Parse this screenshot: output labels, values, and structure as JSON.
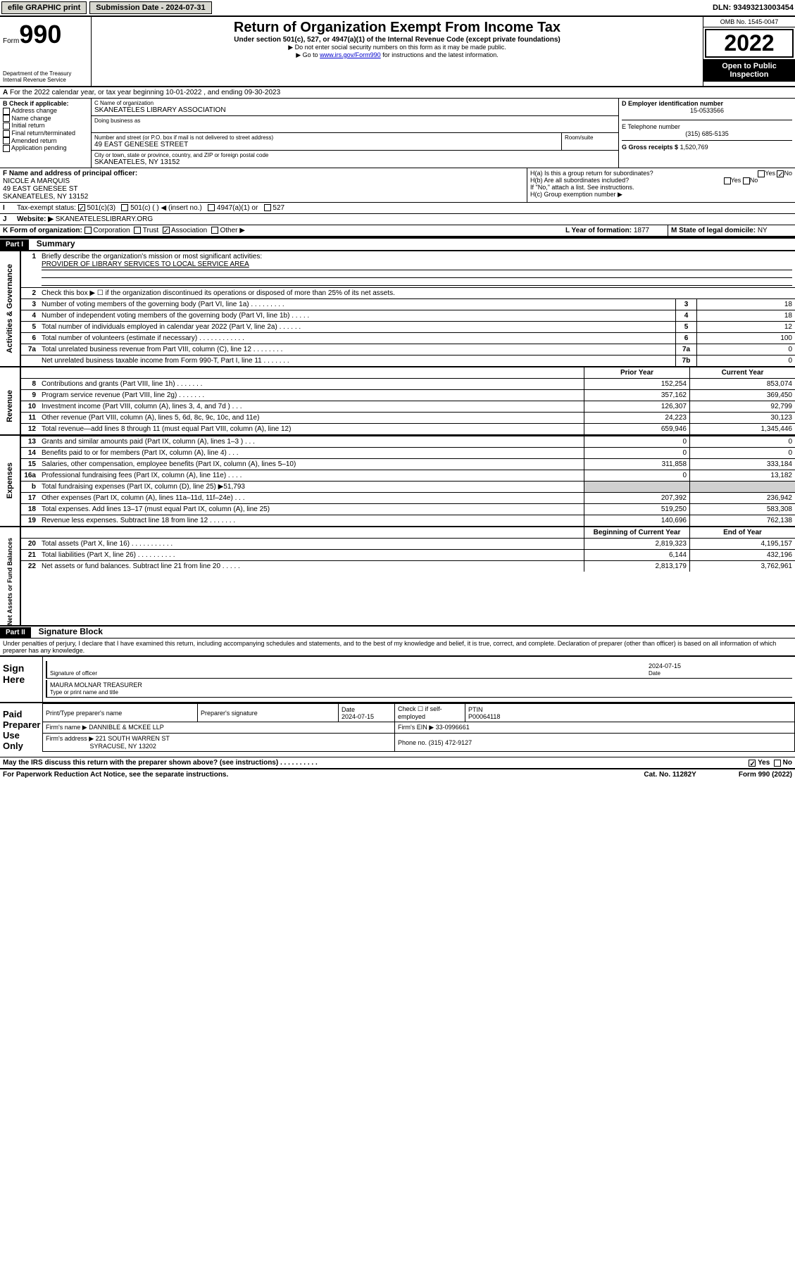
{
  "topbar": {
    "efile": "efile GRAPHIC print",
    "submission_label": "Submission Date - 2024-07-31",
    "dln": "DLN: 93493213003454"
  },
  "header": {
    "form_word": "Form",
    "form_number": "990",
    "title": "Return of Organization Exempt From Income Tax",
    "subtitle": "Under section 501(c), 527, or 4947(a)(1) of the Internal Revenue Code (except private foundations)",
    "note1": "▶ Do not enter social security numbers on this form as it may be made public.",
    "note2_pre": "▶ Go to ",
    "note2_link": "www.irs.gov/Form990",
    "note2_post": " for instructions and the latest information.",
    "dept": "Department of the Treasury\nInternal Revenue Service",
    "omb": "OMB No. 1545-0047",
    "tax_year": "2022",
    "open_public": "Open to Public Inspection"
  },
  "section_a": {
    "text": "For the 2022 calendar year, or tax year beginning 10-01-2022    , and ending 09-30-2023"
  },
  "section_b": {
    "label": "B Check if applicable:",
    "items": [
      "Address change",
      "Name change",
      "Initial return",
      "Final return/terminated",
      "Amended return",
      "Application pending"
    ]
  },
  "section_c": {
    "name_label": "C Name of organization",
    "name": "SKANEATELES LIBRARY ASSOCIATION",
    "dba_label": "Doing business as",
    "street_label": "Number and street (or P.O. box if mail is not delivered to street address)",
    "room_label": "Room/suite",
    "street": "49 EAST GENESEE STREET",
    "city_label": "City or town, state or province, country, and ZIP or foreign postal code",
    "city": "SKANEATELES, NY  13152"
  },
  "section_d": {
    "label": "D Employer identification number",
    "value": "15-0533566"
  },
  "section_e": {
    "label": "E Telephone number",
    "value": "(315) 685-5135"
  },
  "section_g": {
    "label": "G Gross receipts $",
    "value": "1,520,769"
  },
  "section_f": {
    "label": "F  Name and address of principal officer:",
    "name": "NICOLE A MARQUIS",
    "street": "49 EAST GENESEE ST",
    "city": "SKANEATELES, NY  13152"
  },
  "section_h": {
    "h_a": "H(a)  Is this a group return for subordinates?",
    "h_b": "H(b)  Are all subordinates included?",
    "h_b_note": "If \"No,\" attach a list. See instructions.",
    "h_c": "H(c)  Group exemption number ▶",
    "yes": "Yes",
    "no": "No"
  },
  "section_i": {
    "label": "Tax-exempt status:",
    "opts": [
      "501(c)(3)",
      "501(c) (  ) ◀ (insert no.)",
      "4947(a)(1) or",
      "527"
    ]
  },
  "section_j": {
    "label": "Website: ▶",
    "value": "SKANEATELESLIBRARY.ORG"
  },
  "section_k": {
    "label": "K Form of organization:",
    "opts": [
      "Corporation",
      "Trust",
      "Association",
      "Other ▶"
    ]
  },
  "section_l": {
    "label": "L Year of formation:",
    "value": "1877"
  },
  "section_m": {
    "label": "M State of legal domicile:",
    "value": "NY"
  },
  "part1": {
    "header": "Part I",
    "title": "Summary",
    "line1_label": "Briefly describe the organization's mission or most significant activities:",
    "line1_value": "PROVIDER OF LIBRARY SERVICES TO LOCAL SERVICE AREA",
    "line2": "Check this box ▶ ☐  if the organization discontinued its operations or disposed of more than 25% of its net assets.",
    "governance_rows": [
      {
        "n": "3",
        "desc": "Number of voting members of the governing body (Part VI, line 1a)  .    .    .    .    .    .    .    .    .",
        "box": "3",
        "val": "18"
      },
      {
        "n": "4",
        "desc": "Number of independent voting members of the governing body (Part VI, line 1b)  .    .    .    .    .",
        "box": "4",
        "val": "18"
      },
      {
        "n": "5",
        "desc": "Total number of individuals employed in calendar year 2022 (Part V, line 2a)  .    .    .    .    .    .",
        "box": "5",
        "val": "12"
      },
      {
        "n": "6",
        "desc": "Total number of volunteers (estimate if necessary)  .    .    .    .    .    .    .    .    .    .    .    .",
        "box": "6",
        "val": "100"
      },
      {
        "n": "7a",
        "desc": "Total unrelated business revenue from Part VIII, column (C), line 12  .    .    .    .    .    .    .    .",
        "box": "7a",
        "val": "0"
      },
      {
        "n": "",
        "desc": "Net unrelated business taxable income from Form 990-T, Part I, line 11  .    .    .    .    .    .    .",
        "box": "7b",
        "val": "0"
      }
    ],
    "col_prior": "Prior Year",
    "col_current": "Current Year",
    "revenue_rows": [
      {
        "n": "8",
        "desc": "Contributions and grants (Part VIII, line 1h)   .    .    .    .    .    .    .",
        "prior": "152,254",
        "cur": "853,074"
      },
      {
        "n": "9",
        "desc": "Program service revenue (Part VIII, line 2g)   .    .    .    .    .    .    .",
        "prior": "357,162",
        "cur": "369,450"
      },
      {
        "n": "10",
        "desc": "Investment income (Part VIII, column (A), lines 3, 4, and 7d )   .    .    .",
        "prior": "126,307",
        "cur": "92,799"
      },
      {
        "n": "11",
        "desc": "Other revenue (Part VIII, column (A), lines 5, 6d, 8c, 9c, 10c, and 11e)",
        "prior": "24,223",
        "cur": "30,123"
      },
      {
        "n": "12",
        "desc": "Total revenue—add lines 8 through 11 (must equal Part VIII, column (A), line 12)",
        "prior": "659,946",
        "cur": "1,345,446"
      }
    ],
    "expense_rows": [
      {
        "n": "13",
        "desc": "Grants and similar amounts paid (Part IX, column (A), lines 1–3 )   .    .    .",
        "prior": "0",
        "cur": "0"
      },
      {
        "n": "14",
        "desc": "Benefits paid to or for members (Part IX, column (A), line 4)   .    .    .",
        "prior": "0",
        "cur": "0"
      },
      {
        "n": "15",
        "desc": "Salaries, other compensation, employee benefits (Part IX, column (A), lines 5–10)",
        "prior": "311,858",
        "cur": "333,184"
      },
      {
        "n": "16a",
        "desc": "Professional fundraising fees (Part IX, column (A), line 11e)   .    .    .    .",
        "prior": "0",
        "cur": "13,182"
      },
      {
        "n": "b",
        "desc": "Total fundraising expenses (Part IX, column (D), line 25) ▶51,793",
        "prior": "",
        "cur": ""
      },
      {
        "n": "17",
        "desc": "Other expenses (Part IX, column (A), lines 11a–11d, 11f–24e)   .    .    .",
        "prior": "207,392",
        "cur": "236,942"
      },
      {
        "n": "18",
        "desc": "Total expenses. Add lines 13–17 (must equal Part IX, column (A), line 25)",
        "prior": "519,250",
        "cur": "583,308"
      },
      {
        "n": "19",
        "desc": "Revenue less expenses. Subtract line 18 from line 12  .    .    .    .    .    .    .",
        "prior": "140,696",
        "cur": "762,138"
      }
    ],
    "col_begin": "Beginning of Current Year",
    "col_end": "End of Year",
    "balance_rows": [
      {
        "n": "20",
        "desc": "Total assets (Part X, line 16)  .    .    .    .    .    .    .    .    .    .    .",
        "prior": "2,819,323",
        "cur": "4,195,157"
      },
      {
        "n": "21",
        "desc": "Total liabilities (Part X, line 26)  .    .    .    .    .    .    .    .    .    .",
        "prior": "6,144",
        "cur": "432,196"
      },
      {
        "n": "22",
        "desc": "Net assets or fund balances. Subtract line 21 from line 20  .    .    .    .    .",
        "prior": "2,813,179",
        "cur": "3,762,961"
      }
    ],
    "side_gov": "Activities & Governance",
    "side_rev": "Revenue",
    "side_exp": "Expenses",
    "side_bal": "Net Assets or Fund Balances"
  },
  "part2": {
    "header": "Part II",
    "title": "Signature Block",
    "perjury": "Under penalties of perjury, I declare that I have examined this return, including accompanying schedules and statements, and to the best of my knowledge and belief, it is true, correct, and complete. Declaration of preparer (other than officer) is based on all information of which preparer has any knowledge."
  },
  "sign": {
    "label": "Sign Here",
    "sig_officer": "Signature of officer",
    "date_label": "Date",
    "date": "2024-07-15",
    "name": "MAURA MOLNAR  TREASURER",
    "name_label": "Type or print name and title"
  },
  "preparer": {
    "label": "Paid Preparer Use Only",
    "cols": [
      "Print/Type preparer's name",
      "Preparer's signature",
      "Date",
      "Check ☐ if self-employed",
      "PTIN"
    ],
    "date": "2024-07-15",
    "ptin": "P00064118",
    "firm_name_label": "Firm's name    ▶",
    "firm_name": "DANNIBLE & MCKEE LLP",
    "firm_ein_label": "Firm's EIN ▶",
    "firm_ein": "33-0996661",
    "firm_addr_label": "Firm's address ▶",
    "firm_addr1": "221 SOUTH WARREN ST",
    "firm_addr2": "SYRACUSE, NY  13202",
    "phone_label": "Phone no.",
    "phone": "(315) 472-9127"
  },
  "footer": {
    "discuss": "May the IRS discuss this return with the preparer shown above? (see instructions)   .    .    .    .    .    .    .    .    .    .",
    "yes": "Yes",
    "no": "No",
    "paperwork": "For Paperwork Reduction Act Notice, see the separate instructions.",
    "cat": "Cat. No. 11282Y",
    "form": "Form 990 (2022)"
  }
}
